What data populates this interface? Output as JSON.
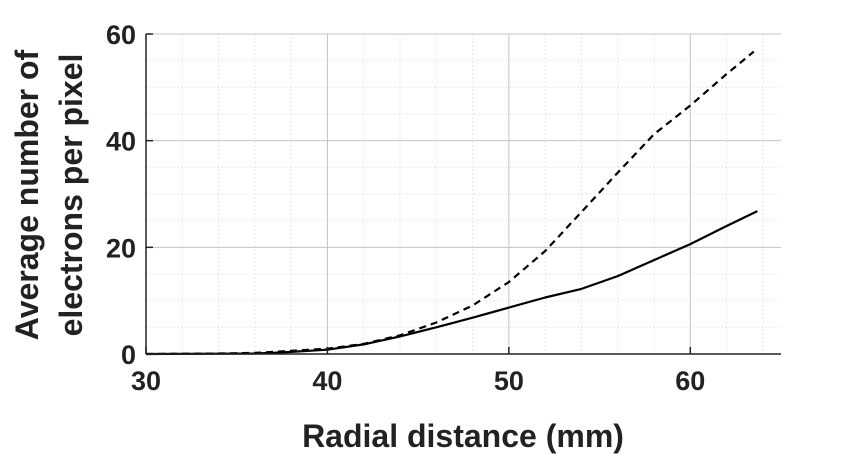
{
  "chart_data": {
    "type": "line",
    "title": "",
    "xlabel": "Radial distance (mm)",
    "ylabel_lines": [
      "Average number of",
      "electrons per pixel"
    ],
    "xlim": [
      30,
      65
    ],
    "ylim": [
      0,
      60
    ],
    "x_ticks": [
      30,
      40,
      50,
      60
    ],
    "y_ticks": [
      0,
      20,
      40,
      60
    ],
    "grid": true,
    "minor_grid": true,
    "series": [
      {
        "style": "dashed",
        "color": "#000000",
        "x": [
          30,
          34,
          36,
          37,
          38,
          40,
          42,
          44,
          46,
          48,
          50,
          52,
          54,
          56,
          58,
          60,
          62,
          63.5
        ],
        "y": [
          0,
          0.1,
          0.2,
          0.4,
          0.6,
          1.0,
          1.9,
          3.5,
          5.9,
          9.1,
          13.5,
          19.3,
          26.6,
          34.0,
          41.2,
          46.6,
          52.5,
          56.7
        ]
      },
      {
        "style": "solid",
        "color": "#000000",
        "x": [
          30,
          34,
          36,
          37,
          38,
          40,
          42,
          44,
          46,
          48,
          50,
          52,
          54,
          56,
          58,
          60,
          62,
          63.7
        ],
        "y": [
          0,
          0.05,
          0.1,
          0.2,
          0.4,
          0.8,
          1.8,
          3.3,
          5.0,
          6.8,
          8.7,
          10.6,
          12.2,
          14.6,
          17.6,
          20.6,
          24.0,
          26.8
        ]
      }
    ]
  }
}
